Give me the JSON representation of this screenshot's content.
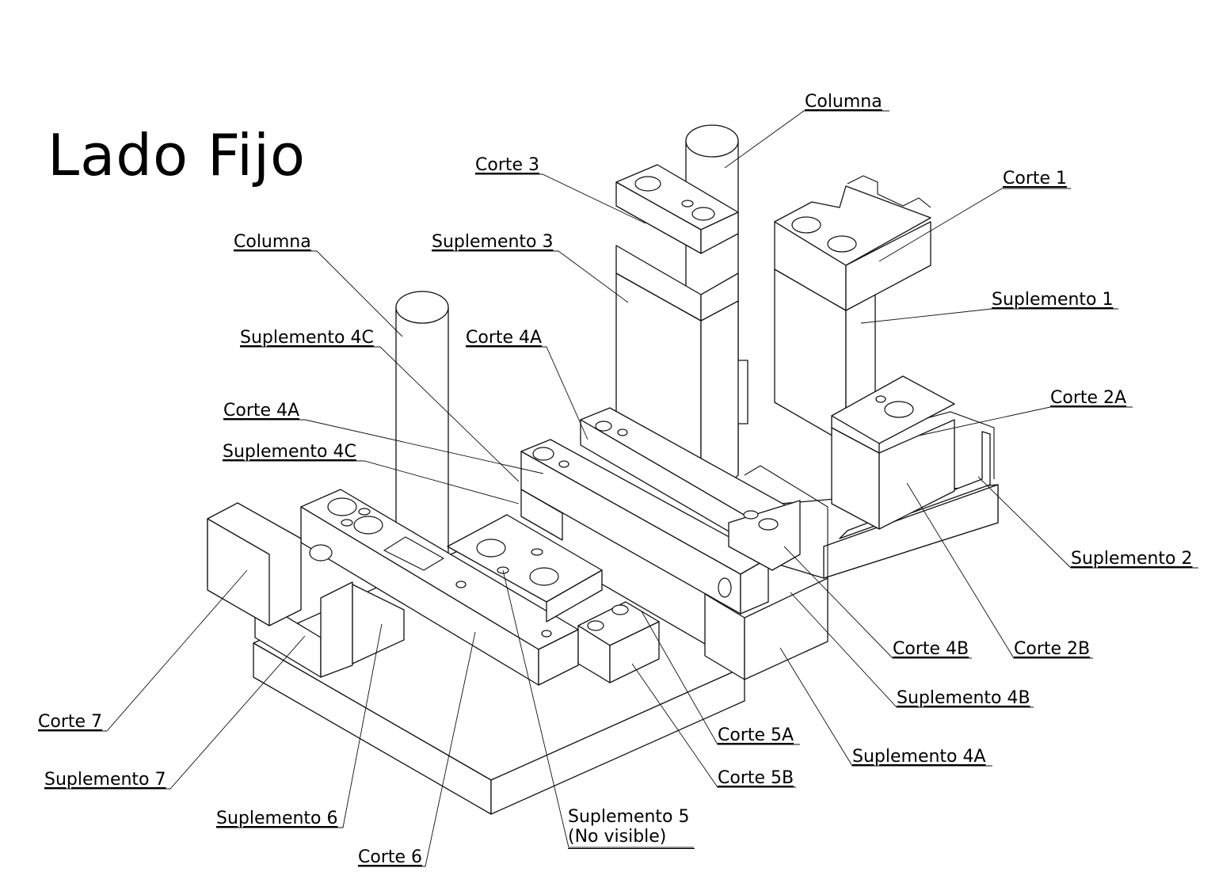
{
  "title": "Lado Fijo",
  "labels": {
    "columna_top": "Columna",
    "corte_3": "Corte 3",
    "corte_1": "Corte 1",
    "columna_left": "Columna",
    "suplemento_3": "Suplemento 3",
    "suplemento_1": "Suplemento 1",
    "suplemento_4c_top": "Suplemento 4C",
    "corte_4a_top": "Corte 4A",
    "corte_2a": "Corte 2A",
    "corte_4a": "Corte 4A",
    "suplemento_4c": "Suplemento 4C",
    "suplemento_2": "Suplemento 2",
    "corte_4b": "Corte 4B",
    "corte_2b": "Corte 2B",
    "suplemento_4b": "Suplemento 4B",
    "corte_7": "Corte 7",
    "corte_5a": "Corte 5A",
    "suplemento_4a": "Suplemento 4A",
    "suplemento_7": "Suplemento 7",
    "corte_5b": "Corte 5B",
    "suplemento_6": "Suplemento 6",
    "suplemento_5_line1": "Suplemento 5",
    "suplemento_5_line2": "(No visible)",
    "corte_6": "Corte 6"
  }
}
